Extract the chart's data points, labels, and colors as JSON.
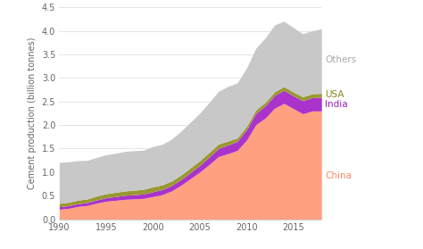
{
  "years": [
    1990,
    1991,
    1992,
    1993,
    1994,
    1995,
    1996,
    1997,
    1998,
    1999,
    2000,
    2001,
    2002,
    2003,
    2004,
    2005,
    2006,
    2007,
    2008,
    2009,
    2010,
    2011,
    2012,
    2013,
    2014,
    2015,
    2016,
    2017,
    2018
  ],
  "china": [
    0.21,
    0.23,
    0.27,
    0.29,
    0.34,
    0.38,
    0.4,
    0.42,
    0.43,
    0.44,
    0.48,
    0.52,
    0.6,
    0.72,
    0.86,
    1.0,
    1.16,
    1.33,
    1.39,
    1.46,
    1.68,
    2.01,
    2.15,
    2.36,
    2.46,
    2.35,
    2.24,
    2.3,
    2.3
  ],
  "india": [
    0.052,
    0.055,
    0.058,
    0.062,
    0.068,
    0.074,
    0.08,
    0.086,
    0.09,
    0.095,
    0.102,
    0.108,
    0.114,
    0.12,
    0.13,
    0.142,
    0.158,
    0.172,
    0.182,
    0.192,
    0.218,
    0.24,
    0.258,
    0.272,
    0.278,
    0.272,
    0.278,
    0.282,
    0.288
  ],
  "usa": [
    0.072,
    0.074,
    0.076,
    0.078,
    0.083,
    0.086,
    0.09,
    0.093,
    0.096,
    0.099,
    0.104,
    0.101,
    0.098,
    0.098,
    0.1,
    0.101,
    0.1,
    0.096,
    0.088,
    0.073,
    0.074,
    0.074,
    0.076,
    0.078,
    0.079,
    0.081,
    0.083,
    0.084,
    0.086
  ],
  "others": [
    0.87,
    0.86,
    0.84,
    0.82,
    0.82,
    0.83,
    0.83,
    0.84,
    0.84,
    0.83,
    0.86,
    0.86,
    0.89,
    0.93,
    0.97,
    1.01,
    1.06,
    1.12,
    1.16,
    1.17,
    1.24,
    1.31,
    1.37,
    1.42,
    1.39,
    1.37,
    1.34,
    1.34,
    1.37
  ],
  "color_china": "#FFA080",
  "color_india": "#AA33CC",
  "color_usa": "#999933",
  "color_others": "#C8C8C8",
  "label_china": "China",
  "label_india": "India",
  "label_usa": "USA",
  "label_others": "Others",
  "label_color_china": "#FF8866",
  "label_color_india": "#9922BB",
  "label_color_usa": "#888822",
  "label_color_others": "#AAAAAA",
  "ylabel": "Cement production (billion tonnes)",
  "ylim": [
    0,
    4.5
  ],
  "xlim_min": 1990,
  "xlim_max": 2018,
  "yticks": [
    0,
    0.5,
    1.0,
    1.5,
    2.0,
    2.5,
    3.0,
    3.5,
    4.0,
    4.5
  ],
  "xticks": [
    1990,
    1995,
    2000,
    2005,
    2010,
    2015
  ],
  "background_color": "#ffffff",
  "grid_color": "#e0e0e0"
}
